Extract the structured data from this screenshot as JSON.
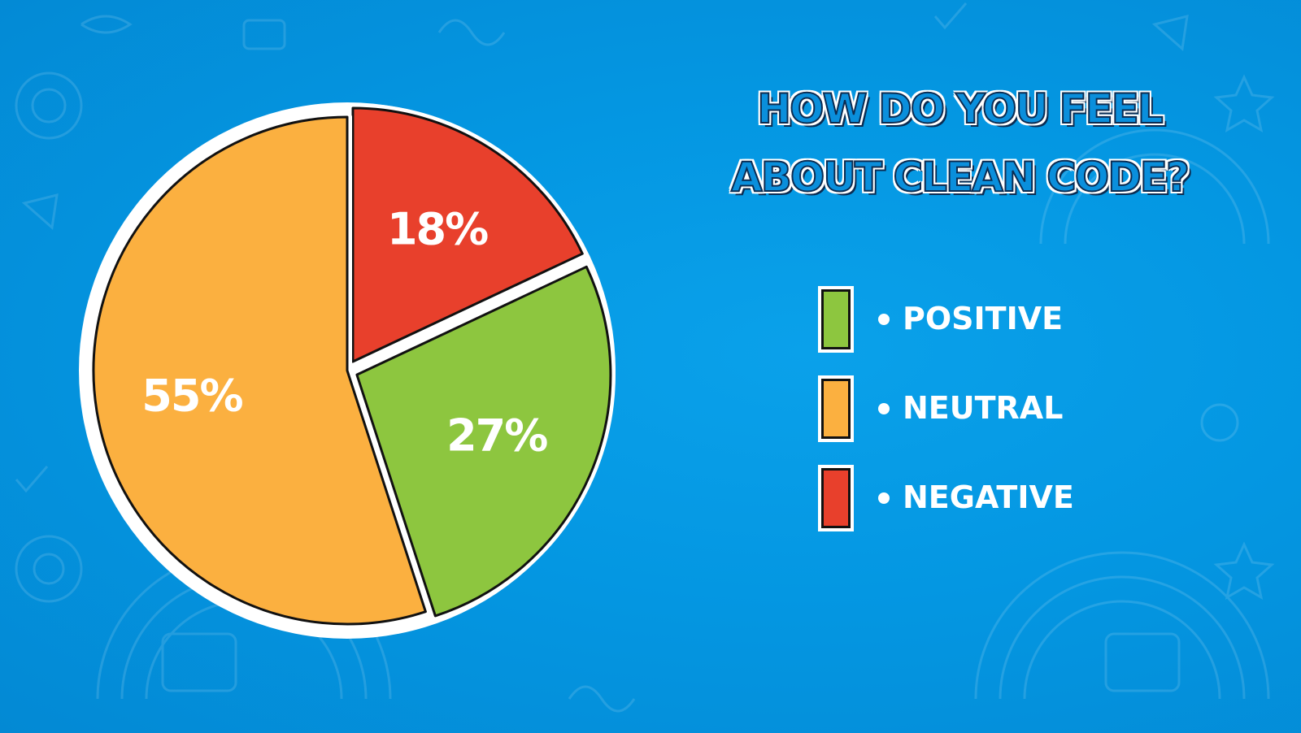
{
  "title": {
    "line1": "HOW DO YOU FEEL",
    "line2": "ABOUT CLEAN CODE?"
  },
  "chart_data": {
    "type": "pie",
    "title": "HOW DO YOU FEEL ABOUT CLEAN CODE?",
    "categories": [
      "POSITIVE",
      "NEUTRAL",
      "NEGATIVE"
    ],
    "values": [
      27,
      55,
      18
    ],
    "labels": [
      "27%",
      "55%",
      "18%"
    ],
    "colors": [
      "#8dc63f",
      "#fbb040",
      "#e8402c"
    ],
    "legend_position": "right",
    "exploded": [
      "POSITIVE",
      "NEGATIVE"
    ]
  },
  "legend": {
    "items": [
      {
        "label": "POSITIVE",
        "color": "#8dc63f"
      },
      {
        "label": "NEUTRAL",
        "color": "#fbb040"
      },
      {
        "label": "NEGATIVE",
        "color": "#e8402c"
      }
    ]
  },
  "colors": {
    "background": "#0497e2",
    "slice_outline": "#111111",
    "rim": "#ffffff"
  }
}
